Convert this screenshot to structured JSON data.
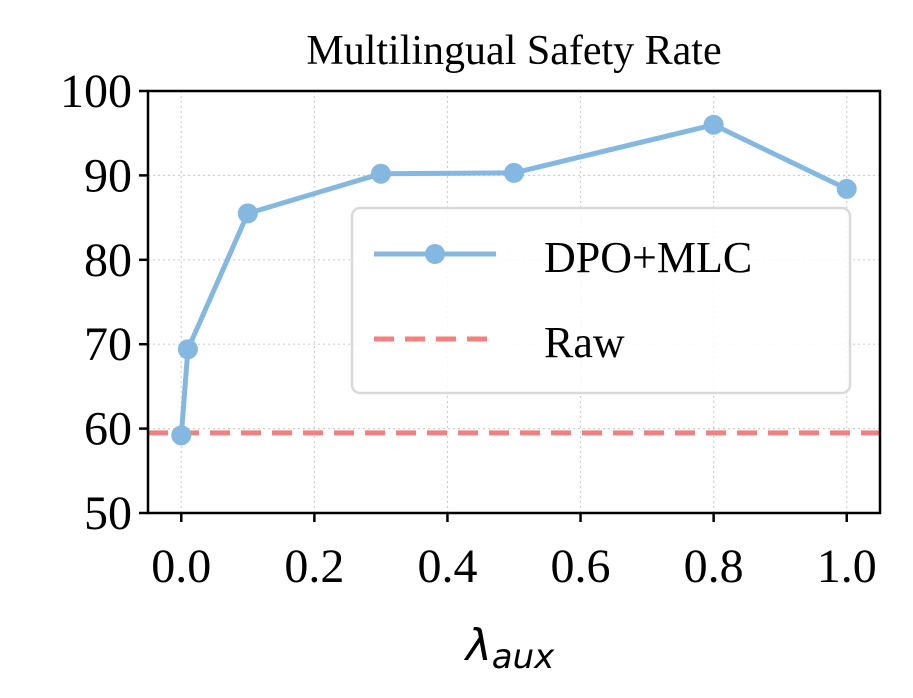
{
  "chart_data": {
    "type": "line",
    "title": "Multilingual Safety Rate",
    "xlabel": "λ",
    "xlabel_sub": "aux",
    "ylabel": "",
    "xlim": [
      -0.05,
      1.05
    ],
    "ylim": [
      50,
      100
    ],
    "xticks": [
      0.0,
      0.2,
      0.4,
      0.6,
      0.8,
      1.0
    ],
    "xtick_labels": [
      "0.0",
      "0.2",
      "0.4",
      "0.6",
      "0.8",
      "1.0"
    ],
    "yticks": [
      50,
      60,
      70,
      80,
      90,
      100
    ],
    "ytick_labels": [
      "50",
      "60",
      "70",
      "80",
      "90",
      "100"
    ],
    "grid": true,
    "legend_position": "center-right",
    "series": [
      {
        "name": "DPO+MLC",
        "color": "#85b8e0",
        "style": "solid-marker",
        "x": [
          0.0,
          0.01,
          0.1,
          0.3,
          0.5,
          0.8,
          1.0
        ],
        "y": [
          59.2,
          69.4,
          85.5,
          90.2,
          90.3,
          96.0,
          88.4
        ]
      }
    ],
    "reference_lines": [
      {
        "name": "Raw",
        "color": "#f47f7f",
        "style": "dashed",
        "y": 59.5
      }
    ]
  }
}
